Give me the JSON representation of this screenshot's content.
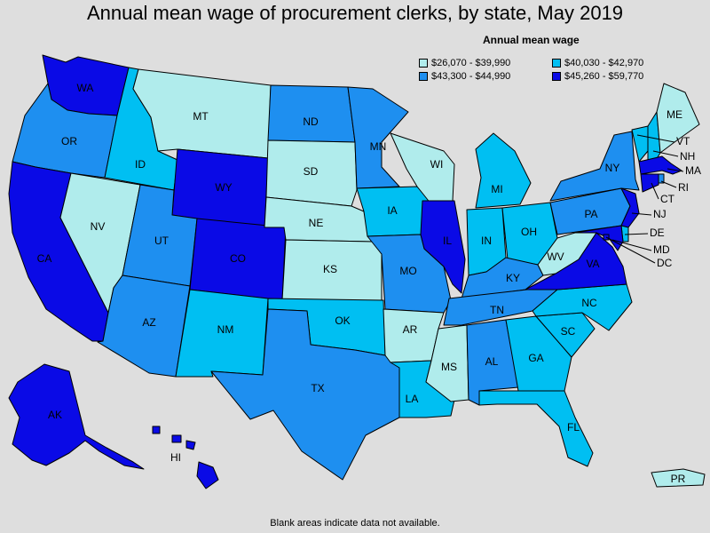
{
  "title": "Annual mean wage of procurement clerks, by state, May 2019",
  "legend": {
    "title": "Annual mean wage",
    "items": [
      {
        "label": "$26,070 - $39,990",
        "color": "#b0ecec"
      },
      {
        "label": "$40,030 - $42,970",
        "color": "#00bff2"
      },
      {
        "label": "$43,300 - $44,990",
        "color": "#1e8ff0"
      },
      {
        "label": "$45,260 - $59,770",
        "color": "#0a0ae6"
      }
    ]
  },
  "footnote": "Blank areas indicate data not available.",
  "states": [
    {
      "abbr": "WA",
      "tier": 3
    },
    {
      "abbr": "OR",
      "tier": 2
    },
    {
      "abbr": "CA",
      "tier": 3
    },
    {
      "abbr": "NV",
      "tier": 0
    },
    {
      "abbr": "ID",
      "tier": 1
    },
    {
      "abbr": "MT",
      "tier": 0
    },
    {
      "abbr": "WY",
      "tier": 3
    },
    {
      "abbr": "UT",
      "tier": 2
    },
    {
      "abbr": "AZ",
      "tier": 2
    },
    {
      "abbr": "CO",
      "tier": 3
    },
    {
      "abbr": "NM",
      "tier": 1
    },
    {
      "abbr": "ND",
      "tier": 2
    },
    {
      "abbr": "SD",
      "tier": 0
    },
    {
      "abbr": "NE",
      "tier": 0
    },
    {
      "abbr": "KS",
      "tier": 0
    },
    {
      "abbr": "OK",
      "tier": 1
    },
    {
      "abbr": "TX",
      "tier": 2
    },
    {
      "abbr": "MN",
      "tier": 2
    },
    {
      "abbr": "IA",
      "tier": 1
    },
    {
      "abbr": "MO",
      "tier": 2
    },
    {
      "abbr": "AR",
      "tier": 0
    },
    {
      "abbr": "LA",
      "tier": 1
    },
    {
      "abbr": "WI",
      "tier": 0
    },
    {
      "abbr": "IL",
      "tier": 3
    },
    {
      "abbr": "MI",
      "tier": 1
    },
    {
      "abbr": "IN",
      "tier": 1
    },
    {
      "abbr": "OH",
      "tier": 1
    },
    {
      "abbr": "KY",
      "tier": 2
    },
    {
      "abbr": "TN",
      "tier": 2
    },
    {
      "abbr": "MS",
      "tier": 0
    },
    {
      "abbr": "AL",
      "tier": 2
    },
    {
      "abbr": "GA",
      "tier": 1
    },
    {
      "abbr": "FL",
      "tier": 1
    },
    {
      "abbr": "SC",
      "tier": 1
    },
    {
      "abbr": "NC",
      "tier": 1
    },
    {
      "abbr": "VA",
      "tier": 3
    },
    {
      "abbr": "WV",
      "tier": 0
    },
    {
      "abbr": "PA",
      "tier": 2
    },
    {
      "abbr": "NY",
      "tier": 2
    },
    {
      "abbr": "VT",
      "tier": 1
    },
    {
      "abbr": "NH",
      "tier": 1
    },
    {
      "abbr": "ME",
      "tier": 0
    },
    {
      "abbr": "MA",
      "tier": 3
    },
    {
      "abbr": "RI",
      "tier": 2
    },
    {
      "abbr": "CT",
      "tier": 3
    },
    {
      "abbr": "NJ",
      "tier": 3
    },
    {
      "abbr": "DE",
      "tier": 1
    },
    {
      "abbr": "MD",
      "tier": 3
    },
    {
      "abbr": "DC",
      "tier": 3
    },
    {
      "abbr": "AK",
      "tier": 3
    },
    {
      "abbr": "HI",
      "tier": 3
    },
    {
      "abbr": "PR",
      "tier": 0
    }
  ]
}
